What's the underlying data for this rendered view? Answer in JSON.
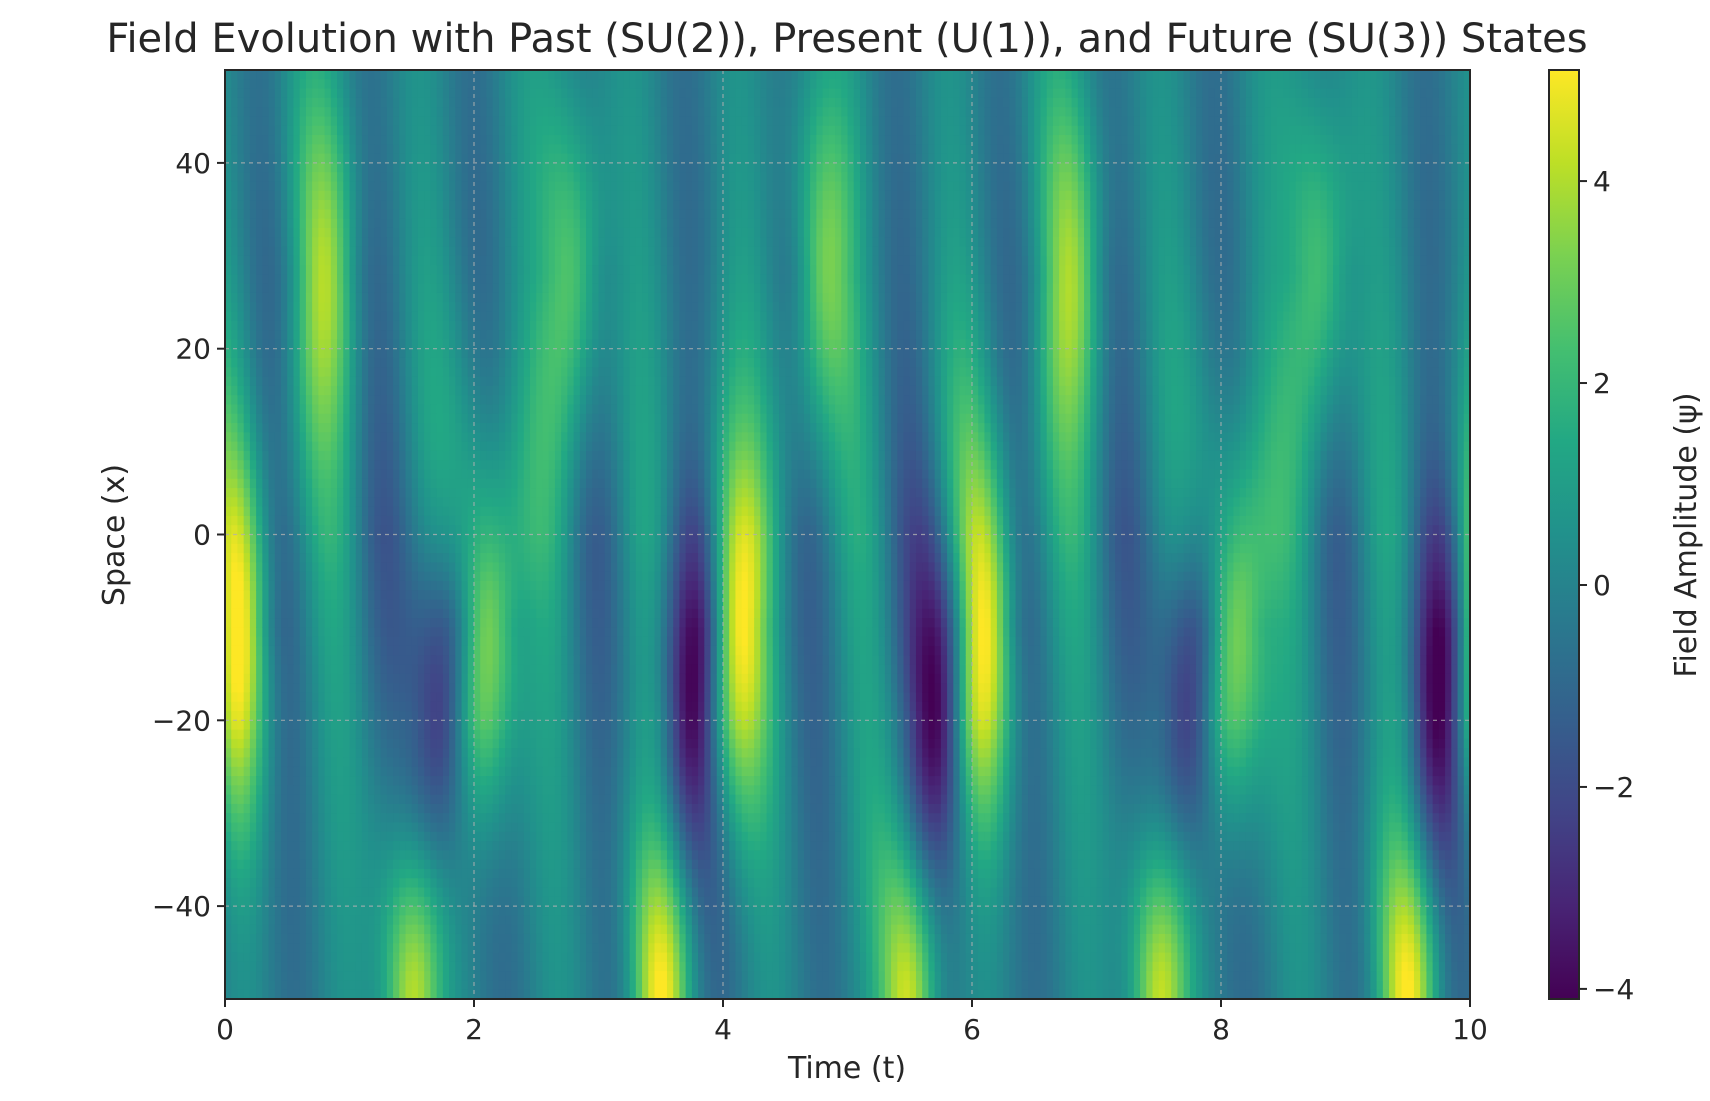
{
  "chart_data": {
    "type": "heatmap",
    "title": "Field Evolution with Past (SU(2)), Present (U(1)), and Future (SU(3)) States",
    "xlabel": "Time (t)",
    "ylabel": "Space (x)",
    "xlim": [
      0,
      10
    ],
    "ylim": [
      -50,
      50
    ],
    "xticks": [
      0,
      2,
      4,
      6,
      8,
      10
    ],
    "xtick_labels": [
      "0",
      "2",
      "4",
      "6",
      "8",
      "10"
    ],
    "yticks": [
      -40,
      -20,
      0,
      20,
      40
    ],
    "ytick_labels": [
      "−40",
      "−20",
      "0",
      "20",
      "40"
    ],
    "grid": true,
    "colormap": "viridis",
    "colorbar": {
      "label": "Field Amplitude (ψ)",
      "range": [
        -4.1,
        5.1
      ],
      "ticks": [
        -4,
        -2,
        0,
        2,
        4
      ],
      "tick_labels": [
        "−4",
        "−2",
        "0",
        "2",
        "4"
      ]
    },
    "period_t": 2,
    "features": [
      {
        "name": "yellow crest",
        "t_offset": 0.1,
        "x_center": -10,
        "x_sigma": 16,
        "amplitude": 5.0
      },
      {
        "name": "lower yellow crest",
        "t_offset": 1.5,
        "x_center": -50,
        "x_sigma": 13,
        "amplitude": 4.8
      },
      {
        "name": "dark trough",
        "t_offset": 1.75,
        "x_center": -20,
        "x_sigma": 15,
        "amplitude": -4.0
      },
      {
        "name": "upper green crest",
        "t_offset": 0.8,
        "x_center": 28,
        "x_sigma": 15,
        "amplitude": 3.2
      }
    ]
  }
}
